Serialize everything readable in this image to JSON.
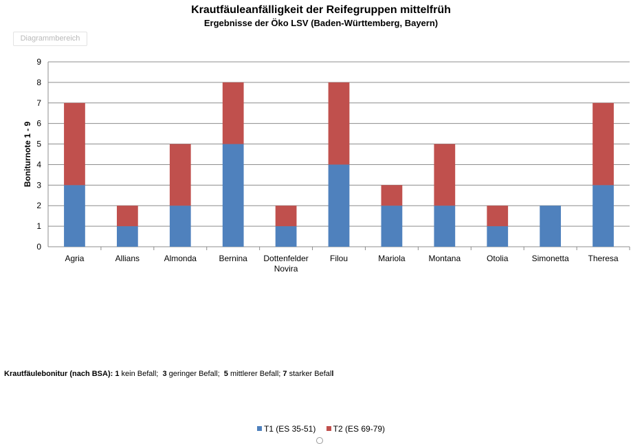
{
  "chart_data": {
    "type": "bar",
    "stacked": true,
    "title": "Krautfäuleanfälligkeit der Reifegruppen mittelfrüh",
    "subtitle": "Ergebnisse der Öko LSV (Baden-Württemberg, Bayern)",
    "xlabel": "",
    "ylabel": "Boniturnote 1 - 9",
    "ylim": [
      0,
      9
    ],
    "yticks": [
      "0",
      "1",
      "2",
      "3",
      "4",
      "5",
      "6",
      "7",
      "8",
      "9"
    ],
    "grid": true,
    "legend_position": "bottom",
    "categories": [
      "Agria",
      "Allians",
      "Almonda",
      "Bernina",
      "Dottenfelder Novira",
      "Filou",
      "Mariola",
      "Montana",
      "Otolia",
      "Simonetta",
      "Theresa"
    ],
    "series": [
      {
        "name": "T1 (ES 35-51)",
        "color": "#4f81bd",
        "values": [
          3,
          1,
          2,
          5,
          1,
          4,
          2,
          2,
          1,
          2,
          3
        ]
      },
      {
        "name": "T2 (ES 69-79)",
        "color": "#c0504d",
        "values": [
          4,
          1,
          3,
          3,
          1,
          4,
          1,
          3,
          1,
          0,
          4
        ]
      }
    ]
  },
  "chart_area_label": "Diagrammbereich",
  "note": {
    "lead": "Krautfäulebonitur (nach BSA):",
    "items": [
      {
        "num": "1",
        "text": "kein Befall;"
      },
      {
        "num": "3",
        "text": "geringer Befall;"
      },
      {
        "num": "5",
        "text": "mittlerer Befall;"
      },
      {
        "num": "7",
        "text": "starker Befal"
      },
      {
        "num": "l",
        "text": ""
      }
    ]
  }
}
